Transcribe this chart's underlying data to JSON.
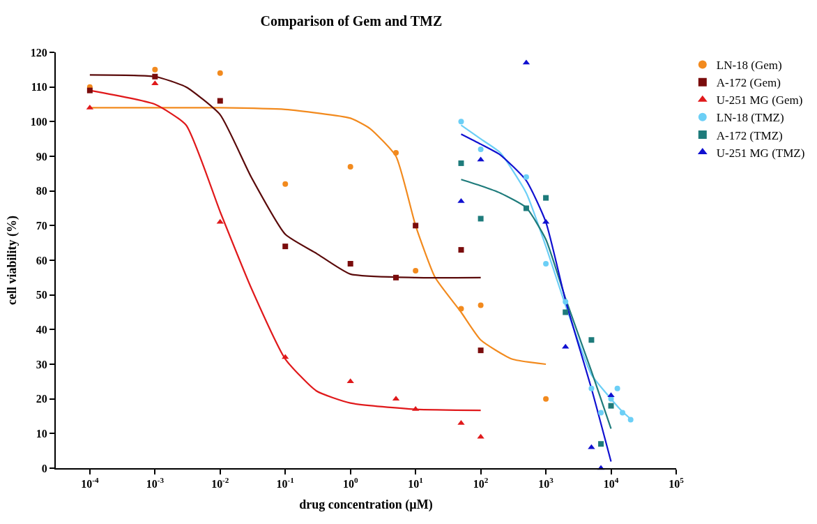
{
  "chart_data": {
    "type": "scatter",
    "title": "Comparison of Gem and TMZ",
    "xlabel": "drug concentration (µM)",
    "ylabel": "cell viability (%)",
    "log": "x",
    "legend": "top right",
    "xlim": [
      3e-05,
      100000
    ],
    "xticks": [
      {
        "value": 0.0001,
        "label": "10$^{-4}$"
      },
      {
        "value": 0.001,
        "label": "10$^{-3}$"
      },
      {
        "value": 0.01,
        "label": "10$^{-2}$"
      },
      {
        "value": 0.1,
        "label": "10$^{-1}$"
      },
      {
        "value": 1,
        "label": "10$^{0}$"
      },
      {
        "value": 10,
        "label": "10$^{1}$"
      },
      {
        "value": 100,
        "label": "10$^{2}$"
      },
      {
        "value": 1000,
        "label": "10$^{3}$"
      },
      {
        "value": 10000,
        "label": "10$^{4}$"
      },
      {
        "value": 100000,
        "label": "10$^{5}$"
      }
    ],
    "ylim": [
      0,
      120
    ],
    "yticks": [
      0,
      10,
      20,
      30,
      40,
      50,
      60,
      70,
      80,
      90,
      100,
      110,
      120
    ],
    "series": [
      {
        "name": "LN-18 (Gem)",
        "marker": "circle",
        "color": "#f28a1e",
        "x": [
          0.0001,
          0.001,
          0.01,
          0.1,
          1,
          5,
          10,
          50,
          100,
          1000
        ],
        "values": [
          110,
          115,
          114,
          82,
          87,
          91,
          57,
          46,
          47,
          20
        ]
      },
      {
        "name": "A-172 (Gem)",
        "marker": "square",
        "color": "#7a0c0c",
        "x": [
          0.0001,
          0.001,
          0.01,
          0.1,
          1,
          5,
          10,
          50,
          100
        ],
        "values": [
          109,
          113,
          106,
          64,
          59,
          55,
          70,
          63,
          34
        ]
      },
      {
        "name": "U-251 MG (Gem)",
        "marker": "triangle",
        "color": "#e0191b",
        "x": [
          0.0001,
          0.001,
          0.01,
          0.1,
          1,
          5,
          10,
          50,
          100
        ],
        "values": [
          104,
          111,
          71,
          32,
          25,
          20,
          17,
          13,
          9
        ]
      },
      {
        "name": "LN-18 (TMZ)",
        "marker": "circle",
        "color": "#6ccff6",
        "x": [
          50,
          100,
          500,
          1000,
          2000,
          5000,
          7000,
          10000,
          12500,
          15000,
          20000
        ],
        "values": [
          100,
          92,
          84,
          59,
          48,
          23,
          16,
          20,
          23,
          16,
          14
        ]
      },
      {
        "name": "A-172 (TMZ)",
        "marker": "square",
        "color": "#1e7b7b",
        "x": [
          50,
          100,
          500,
          1000,
          2000,
          5000,
          7000,
          10000
        ],
        "values": [
          88,
          72,
          75,
          78,
          45,
          37,
          7,
          18
        ]
      },
      {
        "name": "U-251 MG (TMZ)",
        "marker": "triangle",
        "color": "#1010d0",
        "x": [
          50,
          100,
          500,
          1000,
          2000,
          5000,
          7000,
          10000
        ],
        "values": [
          77,
          89,
          117,
          71,
          35,
          6,
          0,
          21
        ]
      },
      {
        "type": "line",
        "marker": "none",
        "color": "#f28a1e",
        "x": [
          0.0001,
          0.001,
          0.01,
          0.1,
          1,
          2,
          5,
          10,
          20,
          50,
          100,
          300,
          1000
        ],
        "values": [
          104,
          104,
          104,
          103.5,
          101,
          98,
          90,
          70,
          55,
          45,
          37,
          31.5,
          30
        ]
      },
      {
        "type": "line",
        "marker": "none",
        "color": "#5a0a0a",
        "x": [
          0.0001,
          0.001,
          0.003,
          0.01,
          0.03,
          0.1,
          0.3,
          1,
          10,
          100
        ],
        "values": [
          113.5,
          113,
          110,
          102,
          84,
          67.5,
          62,
          56,
          55,
          55
        ]
      },
      {
        "type": "line",
        "marker": "none",
        "color": "#e0191b",
        "x": [
          0.0001,
          0.001,
          0.003,
          0.01,
          0.03,
          0.1,
          0.3,
          1,
          10,
          100
        ],
        "values": [
          109,
          105,
          99,
          74,
          52,
          31.5,
          22.3,
          18.8,
          17,
          16.7
        ]
      },
      {
        "type": "line",
        "marker": "none",
        "color": "#6ccff6",
        "x": [
          50,
          100,
          200,
          500,
          1000,
          2000,
          5000,
          10000,
          15000,
          20000
        ],
        "values": [
          99,
          95,
          91,
          79.4,
          64,
          47,
          27,
          20,
          16.3,
          14.2
        ]
      },
      {
        "type": "line",
        "marker": "none",
        "color": "#1e7b7b",
        "x": [
          50,
          100,
          200,
          500,
          1000,
          2000,
          5000,
          10000
        ],
        "values": [
          83.3,
          81.5,
          79.4,
          75.2,
          66,
          49,
          28,
          11.4
        ]
      },
      {
        "type": "line",
        "marker": "none",
        "color": "#1010d0",
        "x": [
          50,
          100,
          200,
          500,
          1000,
          2000,
          5000,
          10000
        ],
        "values": [
          96.4,
          93.5,
          90.4,
          83,
          71,
          48.4,
          23,
          1.9
        ]
      }
    ]
  }
}
